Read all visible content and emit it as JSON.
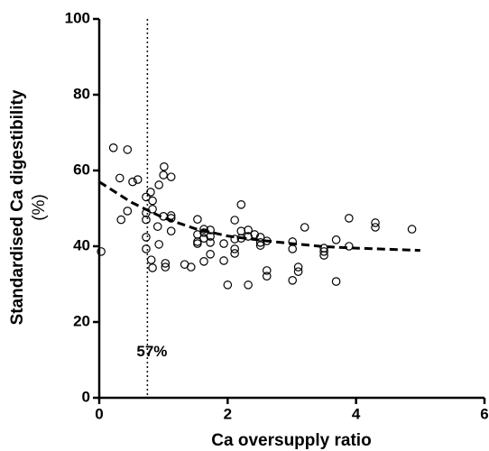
{
  "chart_data": {
    "type": "scatter",
    "x_label": "Ca oversupply ratio",
    "y_label": [
      "Standardised Ca digestibility",
      "(%)"
    ],
    "xlim": [
      0,
      6
    ],
    "xticks": [
      0,
      2,
      4,
      6
    ],
    "ylim": [
      0,
      100
    ],
    "yticks": [
      0,
      20,
      40,
      60,
      80,
      100
    ],
    "series": [
      {
        "type": "scatter",
        "color": "#000000",
        "x": [
          0.03,
          0.22,
          0.44,
          0.32,
          0.34,
          0.44,
          0.52,
          0.6,
          0.73,
          0.73,
          0.73,
          0.73,
          0.73,
          0.8,
          0.83,
          0.83,
          0.81,
          0.83,
          0.93,
          0.91,
          0.93,
          1.01,
          1.0,
          1.12,
          1.0,
          1.03,
          1.03,
          1.12,
          1.12,
          1.12,
          1.33,
          1.43,
          1.53,
          1.53,
          1.53,
          1.53,
          1.63,
          1.63,
          1.63,
          1.63,
          1.73,
          1.73,
          1.73,
          1.73,
          1.94,
          1.94,
          2.0,
          2.11,
          2.11,
          2.11,
          2.11,
          2.21,
          2.21,
          2.21,
          2.32,
          2.32,
          2.32,
          2.42,
          2.51,
          2.51,
          2.51,
          2.61,
          2.61,
          2.61,
          3.01,
          3.01,
          3.01,
          3.1,
          3.1,
          3.2,
          3.5,
          3.5,
          3.5,
          3.69,
          3.69,
          3.89,
          3.89,
          4.3,
          4.3,
          4.87
        ],
        "values": [
          38.6,
          66,
          65.5,
          58,
          47,
          49.3,
          57,
          57.6,
          53,
          48.8,
          47,
          42.4,
          39.3,
          54.3,
          52,
          49.8,
          36.4,
          34.3,
          56.2,
          45.2,
          40.5,
          61,
          58.8,
          58.3,
          47.9,
          35.5,
          34.5,
          48.1,
          47.4,
          44,
          35.2,
          34.5,
          47.1,
          43.1,
          41.2,
          40.7,
          44.5,
          43.6,
          42.1,
          36,
          44.3,
          42.6,
          41,
          37.9,
          40.7,
          36.2,
          29.8,
          46.9,
          41.9,
          39.3,
          38.1,
          51,
          44,
          42.1,
          29.8,
          44.3,
          42.6,
          43.1,
          42.4,
          41,
          40.2,
          41.4,
          33.6,
          32.1,
          41.2,
          39.3,
          31,
          34.5,
          33.3,
          45,
          39.5,
          38.6,
          37.6,
          41.7,
          30.7,
          47.4,
          40,
          46.2,
          45,
          44.5
        ]
      },
      {
        "type": "line",
        "color": "#000000",
        "dash": "dashed",
        "x": [
          0,
          0.5,
          1,
          1.5,
          2,
          2.5,
          3,
          3.5,
          4,
          4.5,
          5
        ],
        "values": [
          57,
          51.6,
          47.5,
          44.6,
          42.7,
          41.6,
          40.7,
          39.9,
          39.5,
          39.2,
          38.9
        ]
      }
    ],
    "annotations": [
      {
        "x": 0.75,
        "label": "57%"
      }
    ]
  }
}
